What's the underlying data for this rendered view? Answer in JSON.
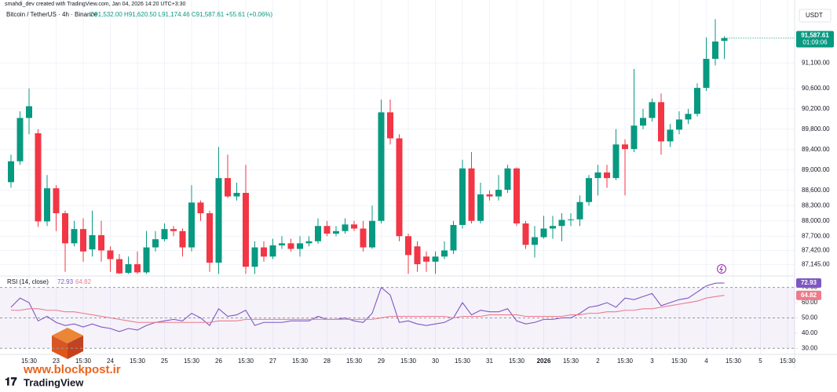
{
  "credit": "smahdi_dev created with TradingView.com, Jan 04, 2026 14:20 UTC+3:30",
  "watermark": {
    "site": "www.blockpost.ir",
    "brand": "TradingView"
  },
  "chart_data": [
    {
      "type": "candlestick",
      "title": "Bitcoin / TetherUS · 4h · Binance",
      "ohlc_legend": "O91,532.00 H91,620.50 L91,174.46 C91,587.61 +55.61 (+0.06%)",
      "currency": "USDT",
      "close_label": "91,587.61",
      "countdown": "01:09:06",
      "up_color": "#089981",
      "down_color": "#f23645",
      "ylim": [
        86950,
        92150
      ],
      "yticks": [
        {
          "value": 91100,
          "label": "91,100.00"
        },
        {
          "value": 90600,
          "label": "90,600.00"
        },
        {
          "value": 90200,
          "label": "90,200.00"
        },
        {
          "value": 89800,
          "label": "89,800.00"
        },
        {
          "value": 89400,
          "label": "89,400.00"
        },
        {
          "value": 89000,
          "label": "89,000.00"
        },
        {
          "value": 88600,
          "label": "88,600.00"
        },
        {
          "value": 88300,
          "label": "88,300.00"
        },
        {
          "value": 88000,
          "label": "88,000.00"
        },
        {
          "value": 87700,
          "label": "87,700.00"
        },
        {
          "value": 87420,
          "label": "87,420.00"
        },
        {
          "value": 87145,
          "label": "87,145.00"
        }
      ],
      "categories": [
        null,
        null,
        "15:30",
        null,
        null,
        "23",
        null,
        null,
        "15:30",
        null,
        null,
        "24",
        null,
        null,
        "15:30",
        null,
        null,
        "25",
        null,
        null,
        "15:30",
        null,
        null,
        "26",
        null,
        null,
        "15:30",
        null,
        null,
        "27",
        null,
        null,
        "15:30",
        null,
        null,
        "28",
        null,
        null,
        "15:30",
        null,
        null,
        "29",
        null,
        null,
        "15:30",
        null,
        null,
        "30",
        null,
        null,
        "15:30",
        null,
        null,
        "31",
        null,
        null,
        "15:30",
        null,
        null,
        "2026",
        null,
        null,
        "15:30",
        null,
        null,
        "2",
        null,
        null,
        "15:30",
        null,
        null,
        "3",
        null,
        null,
        "15:30",
        null,
        null,
        "4",
        null,
        null,
        "15:30",
        null,
        null,
        "5",
        null,
        null,
        "15:30"
      ],
      "open": [
        88760,
        89170,
        90020,
        89720,
        87990,
        88640,
        88150,
        87560,
        87840,
        87440,
        87720,
        87420,
        87250,
        86980,
        87150,
        86990,
        87480,
        87640,
        87840,
        87800,
        87480,
        88360,
        88150,
        87180,
        88840,
        88480,
        88550,
        87100,
        87480,
        87300,
        87520,
        87560,
        87450,
        87560,
        87600,
        87900,
        87750,
        87800,
        87930,
        87850,
        87480,
        88000,
        90130,
        89620,
        87700,
        87500,
        87300,
        87200,
        87300,
        87420,
        87920,
        89030,
        88000,
        88520,
        88480,
        88610,
        89030,
        87950,
        87530,
        87680,
        87850,
        87900,
        88020,
        88030,
        88370,
        88840,
        88950,
        88840,
        89500,
        89410,
        89870,
        90020,
        90330,
        89560,
        89790,
        89990,
        90100,
        90610,
        91180,
        91532,
        null,
        null,
        null,
        null,
        null,
        null,
        null
      ],
      "high": [
        89300,
        90150,
        90600,
        89800,
        88900,
        88700,
        88200,
        88000,
        88050,
        88200,
        88000,
        87500,
        87350,
        87300,
        87400,
        87800,
        87800,
        87950,
        87900,
        87850,
        88700,
        88400,
        88200,
        89450,
        89300,
        88750,
        89100,
        87600,
        87600,
        87650,
        87700,
        87650,
        87700,
        87700,
        88050,
        88000,
        87900,
        88050,
        88000,
        88000,
        88300,
        90380,
        90380,
        89700,
        87750,
        87600,
        87400,
        87400,
        87600,
        88000,
        89200,
        89350,
        88750,
        88600,
        88900,
        89100,
        89050,
        88000,
        87900,
        88100,
        88100,
        88150,
        88150,
        88500,
        88900,
        89100,
        89100,
        89800,
        89600,
        90980,
        90200,
        90400,
        90500,
        89900,
        90150,
        90200,
        90700,
        91600,
        91960,
        91620.5,
        null,
        null,
        null,
        null,
        null,
        null,
        null
      ],
      "low": [
        88650,
        89100,
        89700,
        87880,
        87900,
        87800,
        87000,
        87500,
        87200,
        87300,
        87200,
        87000,
        86960,
        86960,
        86960,
        86960,
        87400,
        87600,
        87700,
        87300,
        87400,
        88000,
        87000,
        86960,
        88450,
        88400,
        86960,
        86960,
        87200,
        87250,
        87450,
        87400,
        87300,
        87500,
        87550,
        87700,
        87700,
        87750,
        87800,
        87400,
        87450,
        87950,
        89500,
        87600,
        86960,
        87000,
        87000,
        86960,
        87250,
        87350,
        87850,
        87950,
        87950,
        88400,
        88400,
        88550,
        87900,
        87450,
        87280,
        87650,
        87650,
        87600,
        87900,
        87900,
        88300,
        88500,
        88650,
        88800,
        88500,
        89350,
        89800,
        89950,
        89300,
        89450,
        89700,
        89900,
        90050,
        90550,
        91050,
        91174.46,
        null,
        null,
        null,
        null,
        null,
        null,
        null
      ],
      "close": [
        89170,
        90020,
        90250,
        87990,
        88640,
        88150,
        87560,
        87840,
        87400,
        87720,
        87420,
        87250,
        86970,
        87150,
        86990,
        87480,
        87640,
        87840,
        87800,
        87480,
        88360,
        88150,
        87180,
        88840,
        88480,
        88550,
        87100,
        87480,
        87300,
        87520,
        87560,
        87450,
        87560,
        87600,
        87900,
        87750,
        87800,
        87930,
        87850,
        87480,
        88000,
        90130,
        89620,
        87700,
        87330,
        87150,
        87200,
        87300,
        87420,
        87920,
        89030,
        88000,
        88520,
        88480,
        88610,
        89030,
        87950,
        87530,
        87680,
        87850,
        87900,
        88020,
        88030,
        88370,
        88840,
        88950,
        88840,
        89500,
        89410,
        89870,
        90020,
        90330,
        89560,
        89790,
        89990,
        90100,
        90610,
        91180,
        91520,
        91587.61,
        null,
        null,
        null,
        null,
        null,
        null,
        null
      ]
    },
    {
      "type": "line",
      "title": "RSI (14, close)",
      "ylim": [
        26,
        76
      ],
      "yticks": [
        {
          "value": 70,
          "label": "70.00"
        },
        {
          "value": 60,
          "label": "60.00"
        },
        {
          "value": 50,
          "label": "50.00"
        },
        {
          "value": 40,
          "label": "40.00"
        },
        {
          "value": 30,
          "label": "30.00"
        }
      ],
      "levels": [
        70,
        50,
        30
      ],
      "band_color": "#7e57c2",
      "series": [
        {
          "color": "#7e57c2",
          "values": [
            57,
            63,
            60,
            48,
            51,
            47,
            45,
            46,
            44,
            46,
            44,
            43,
            41,
            43,
            42,
            45,
            47,
            48,
            49,
            48,
            53,
            50,
            45,
            56,
            51,
            52,
            55,
            45,
            47,
            47,
            47,
            48,
            48,
            48,
            51,
            49,
            49,
            50,
            48,
            47,
            53,
            70,
            65,
            47,
            48,
            46,
            45,
            46,
            47,
            50,
            60,
            52,
            55,
            54,
            54,
            56,
            48,
            46,
            47,
            49,
            49,
            50,
            50,
            53,
            57,
            58,
            60,
            57,
            63,
            62,
            64,
            66,
            58,
            60,
            62,
            63,
            67,
            71,
            72.8,
            72.93
          ]
        },
        {
          "color": "#ec7b8b",
          "values": [
            55,
            55,
            56,
            56,
            55,
            55,
            54,
            54,
            53,
            52,
            51,
            50,
            49,
            48,
            47,
            47,
            47,
            47,
            47,
            47,
            47,
            47,
            47,
            48,
            48,
            48,
            49,
            49,
            49,
            49,
            49,
            49,
            49,
            49,
            49,
            49,
            49,
            49,
            49,
            49,
            49,
            50,
            51,
            51,
            51,
            51,
            51,
            51,
            51,
            50,
            51,
            51,
            51,
            52,
            52,
            52,
            52,
            51,
            51,
            51,
            51,
            51,
            52,
            52,
            53,
            53,
            54,
            54,
            55,
            55,
            56,
            56,
            57,
            58,
            59,
            60,
            61,
            63,
            64,
            64.82
          ]
        }
      ]
    }
  ]
}
